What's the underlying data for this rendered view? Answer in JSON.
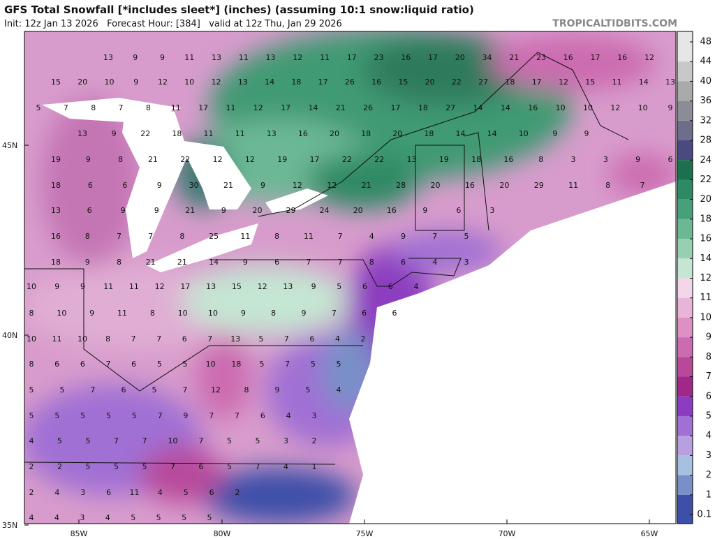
{
  "header": {
    "title": "GFS Total Snowfall [*includes sleet*] (inches) (assuming 10:1 snow:liquid ratio)",
    "subtitle": "Init: 12z Jan 13 2026   Forecast Hour: [384]   valid at 12z Thu, Jan 29 2026",
    "watermark": "TROPICALTIDBITS.COM"
  },
  "latitude_labels": [
    "45N",
    "40N",
    "35N"
  ],
  "longitude_labels": [
    "85W",
    "80W",
    "75W",
    "70W",
    "65W"
  ],
  "colorbar": {
    "ticks": [
      48,
      44,
      40,
      36,
      32,
      28,
      24,
      22,
      20,
      18,
      16,
      14,
      12,
      11,
      10,
      9,
      8,
      7,
      6,
      5,
      4,
      3,
      2,
      1,
      0.1
    ],
    "colors": [
      "#e6e6e6",
      "#c8c8c8",
      "#aaaaaa",
      "#8c8c96",
      "#6e6e8c",
      "#4a4a80",
      "#1e6e50",
      "#2e8a64",
      "#48a07a",
      "#6cb894",
      "#96d0b0",
      "#c4e6d2",
      "#f4d6ea",
      "#e8b4d8",
      "#dc90c4",
      "#cc6cb0",
      "#b8489a",
      "#a02888",
      "#8c3cc0",
      "#a070d4",
      "#b8a0e0",
      "#a8c0e0",
      "#7890c8",
      "#3c50a8"
    ]
  },
  "map_values": [
    [
      13,
      9,
      9,
      11,
      13,
      11,
      13,
      12,
      11,
      17,
      23,
      16,
      17,
      20,
      34,
      21,
      23,
      16,
      17,
      16,
      12
    ],
    [
      15,
      20,
      10,
      9,
      12,
      10,
      12,
      13,
      14,
      18,
      17,
      26,
      16,
      15,
      20,
      22,
      27,
      18,
      17,
      12,
      15,
      11,
      14,
      13
    ],
    [
      5,
      7,
      8,
      7,
      8,
      11,
      17,
      11,
      12,
      17,
      14,
      21,
      26,
      17,
      18,
      27,
      14,
      14,
      16,
      10,
      10,
      12,
      10,
      9
    ],
    [
      13,
      9,
      22,
      18,
      11,
      11,
      13,
      16,
      20,
      18,
      20,
      18,
      14,
      14,
      10,
      9,
      9
    ],
    [
      19,
      9,
      8,
      21,
      22,
      12,
      12,
      19,
      17,
      22,
      22,
      13,
      19,
      18,
      16,
      8,
      3,
      3,
      9,
      6
    ],
    [
      18,
      6,
      6,
      9,
      30,
      21,
      9,
      12,
      12,
      21,
      28,
      20,
      16,
      20,
      29,
      11,
      8,
      7
    ],
    [
      13,
      6,
      9,
      9,
      21,
      9,
      20,
      29,
      24,
      20,
      16,
      9,
      6,
      3
    ],
    [
      16,
      8,
      7,
      7,
      8,
      25,
      11,
      8,
      11,
      7,
      4,
      9,
      7,
      5
    ],
    [
      18,
      9,
      8,
      21,
      21,
      14,
      9,
      6,
      7,
      7,
      8,
      6,
      4,
      3
    ],
    [
      10,
      9,
      9,
      11,
      11,
      12,
      17,
      13,
      15,
      12,
      13,
      9,
      5,
      6,
      6,
      4
    ],
    [
      8,
      10,
      9,
      11,
      8,
      10,
      10,
      9,
      8,
      9,
      7,
      6,
      6
    ],
    [
      10,
      11,
      10,
      8,
      7,
      7,
      6,
      7,
      13,
      5,
      7,
      6,
      4,
      2
    ],
    [
      8,
      6,
      6,
      7,
      6,
      5,
      5,
      10,
      18,
      5,
      7,
      5,
      5
    ],
    [
      5,
      5,
      7,
      6,
      5,
      7,
      12,
      8,
      9,
      5,
      4
    ],
    [
      5,
      5,
      5,
      5,
      5,
      7,
      9,
      7,
      7,
      6,
      4,
      3
    ],
    [
      4,
      5,
      5,
      7,
      7,
      10,
      7,
      5,
      5,
      3,
      2
    ],
    [
      2,
      2,
      5,
      5,
      5,
      7,
      6,
      5,
      7,
      4,
      1
    ],
    [
      2,
      4,
      3,
      6,
      11,
      4,
      5,
      6,
      2
    ],
    [
      4,
      4,
      3,
      4,
      5,
      5,
      5,
      5
    ]
  ]
}
